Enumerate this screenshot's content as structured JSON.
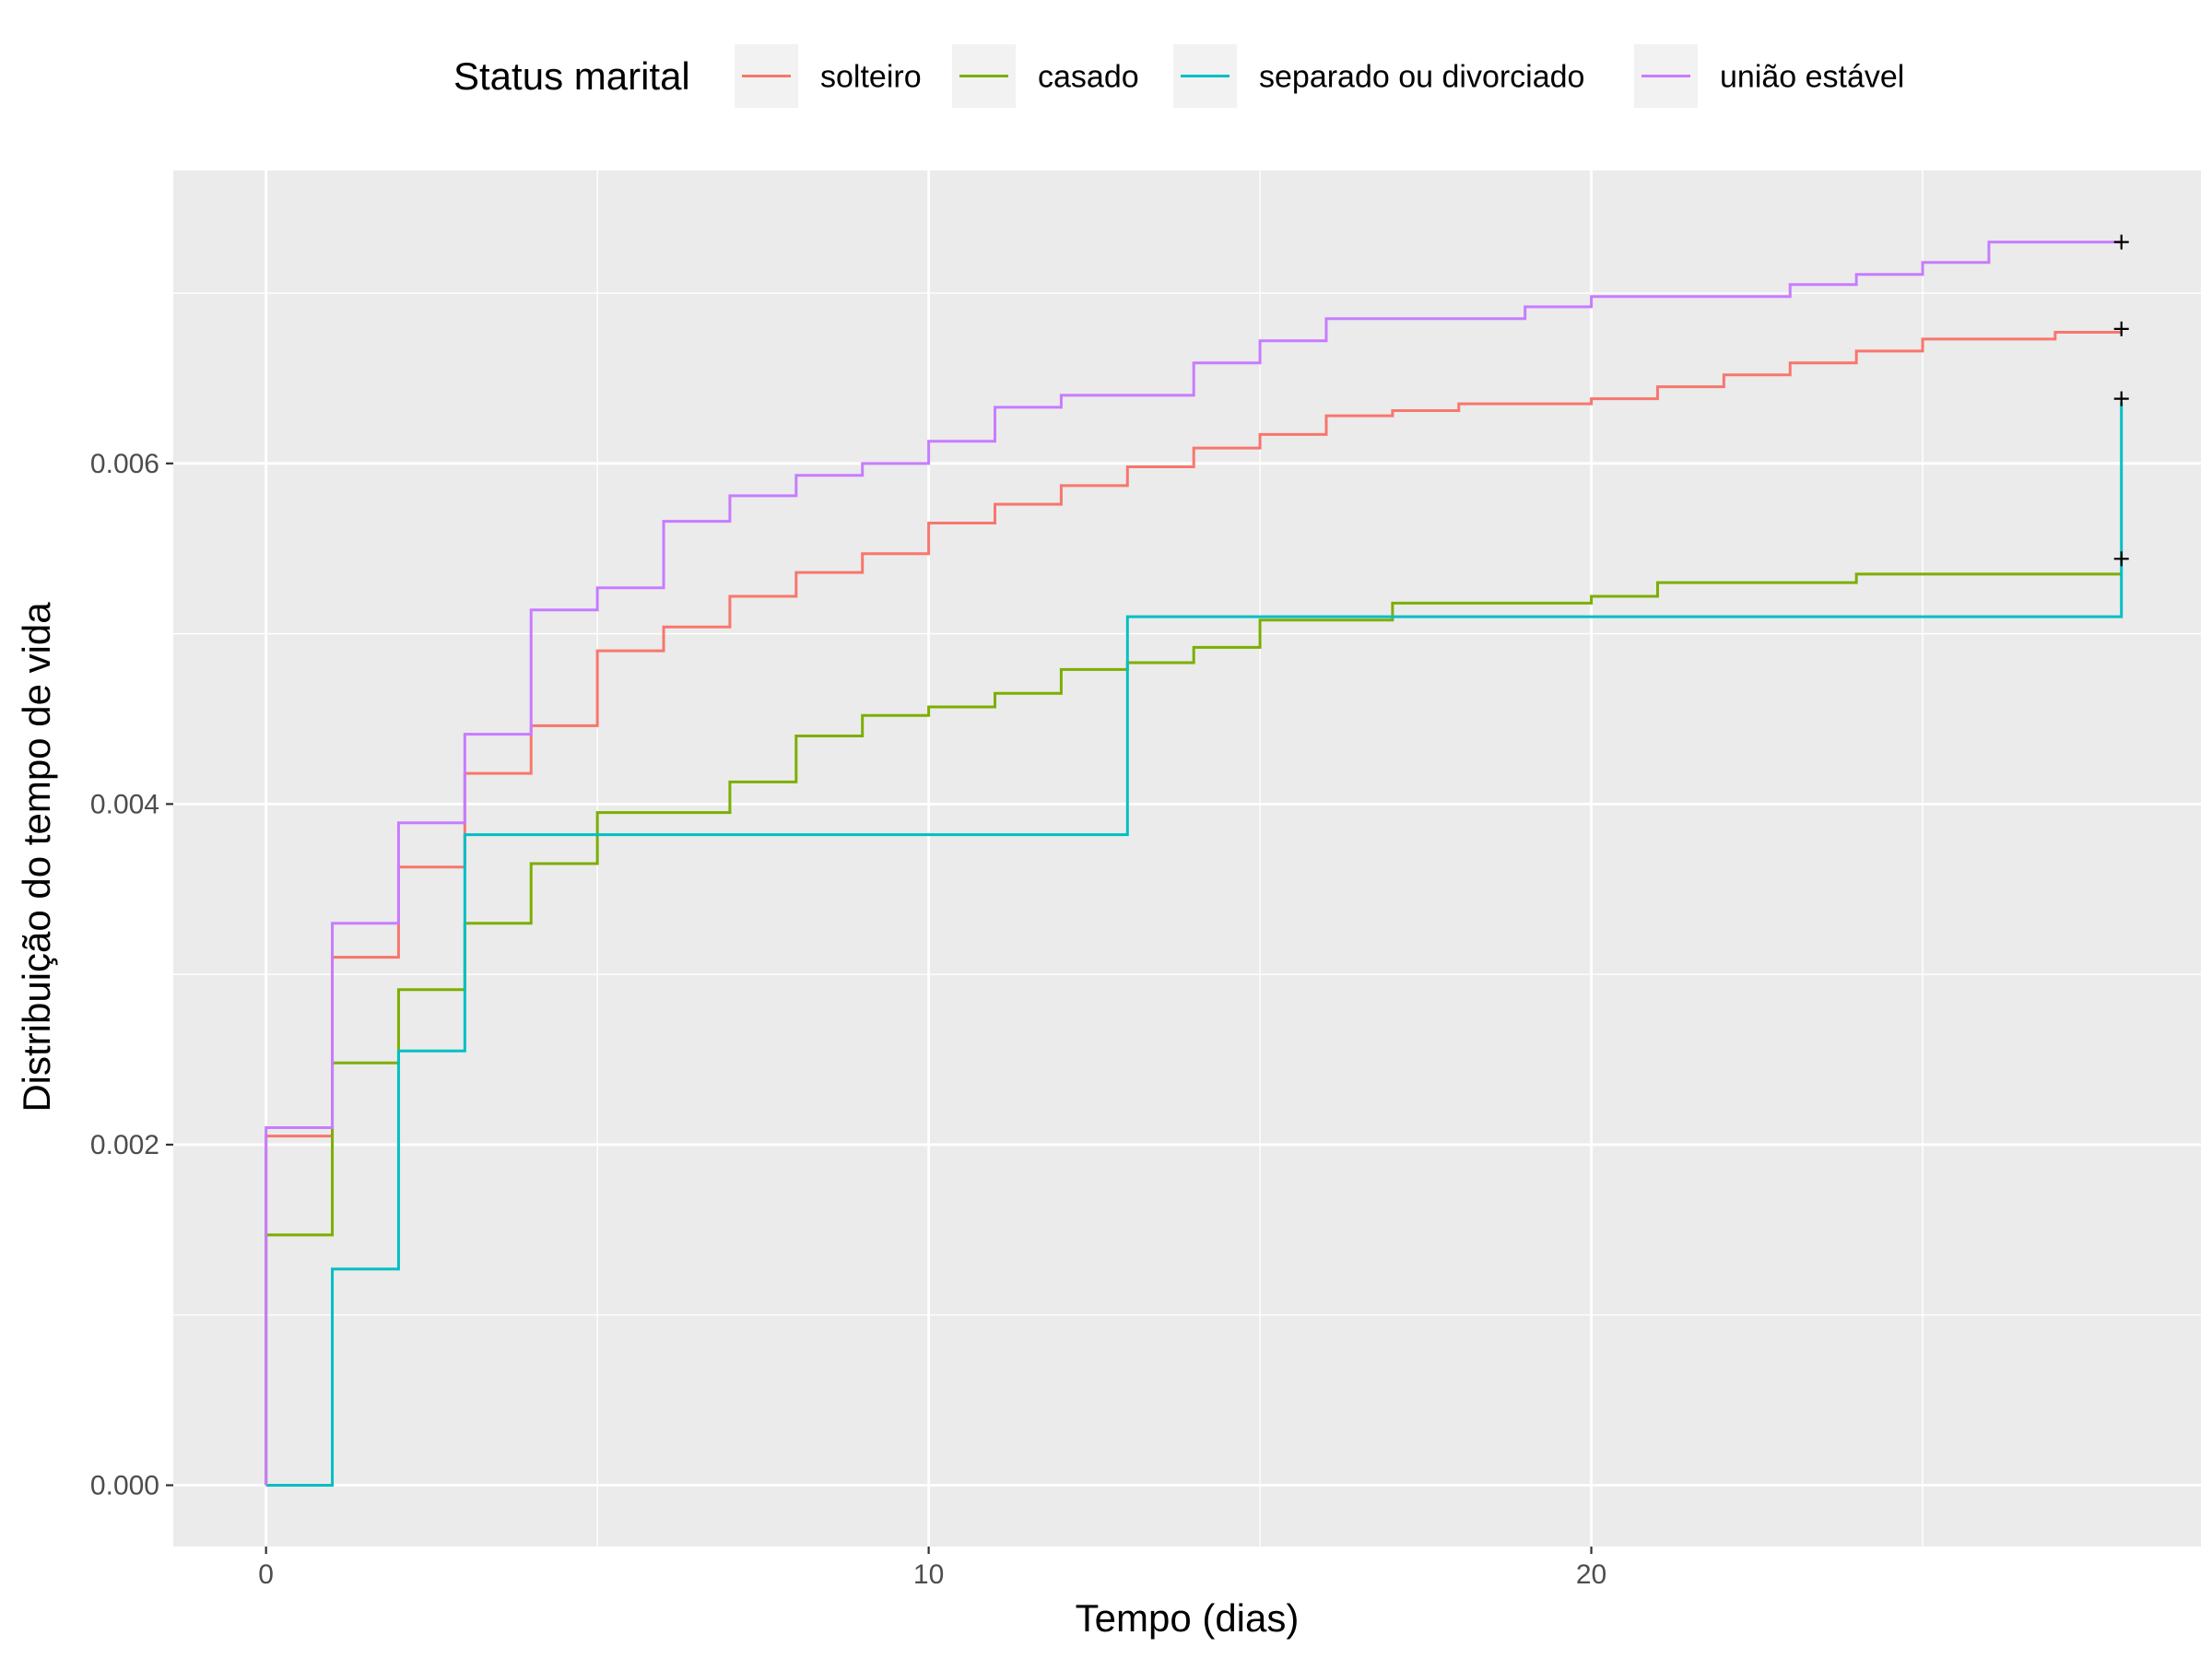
{
  "chart_data": {
    "type": "line",
    "subtype": "step",
    "title": "",
    "xlabel": "Tempo (dias)",
    "ylabel": "Distribuição do tempo de vida",
    "xlim": [
      -1.4,
      29.2
    ],
    "ylim": [
      -0.00036,
      0.00772
    ],
    "x_ticks": [
      0,
      10,
      20
    ],
    "x_tick_labels": [
      "0",
      "10",
      "20"
    ],
    "y_ticks": [
      0.0,
      0.002,
      0.004,
      0.006
    ],
    "y_tick_labels": [
      "0.000",
      "0.002",
      "0.004",
      "0.006"
    ],
    "grid": true,
    "legend": {
      "title": "Status marital",
      "position": "top"
    },
    "censor_mark": "+",
    "series": [
      {
        "name": "solteiro",
        "color": "#F8766D",
        "x": [
          0,
          0,
          1,
          2,
          3,
          4,
          5,
          6,
          7,
          8,
          9,
          10,
          11,
          12,
          13,
          14,
          15,
          16,
          17,
          18,
          20,
          21,
          22,
          23,
          24,
          25,
          27,
          28
        ],
        "y": [
          0,
          0.00205,
          0.0031,
          0.00363,
          0.00418,
          0.00446,
          0.0049,
          0.00504,
          0.00522,
          0.00536,
          0.00547,
          0.00565,
          0.00576,
          0.00587,
          0.00598,
          0.00609,
          0.00617,
          0.00628,
          0.00631,
          0.00635,
          0.00638,
          0.00645,
          0.00652,
          0.00659,
          0.00666,
          0.00673,
          0.00677,
          0.00677
        ],
        "censor_x": 28,
        "censor_y": 0.00679
      },
      {
        "name": "casado",
        "color": "#7CAE00",
        "x": [
          0,
          0,
          1,
          2,
          3,
          4,
          5,
          7,
          8,
          9,
          10,
          11,
          12,
          13,
          14,
          15,
          17,
          20,
          21,
          24,
          28
        ],
        "y": [
          0,
          0.00147,
          0.00248,
          0.00291,
          0.0033,
          0.00365,
          0.00395,
          0.00413,
          0.0044,
          0.00452,
          0.00457,
          0.00465,
          0.00479,
          0.00483,
          0.00492,
          0.00508,
          0.00518,
          0.00522,
          0.0053,
          0.00535,
          0.00535
        ],
        "censor_x": 28,
        "censor_y": 0.00544
      },
      {
        "name": "separado ou divorciado",
        "color": "#00BFC4",
        "x": [
          0,
          1,
          2,
          3,
          13,
          28,
          28
        ],
        "y": [
          0,
          0.00127,
          0.00255,
          0.00382,
          0.0051,
          0.0051,
          0.00636
        ],
        "censor_x": 28,
        "censor_y": 0.00638
      },
      {
        "name": "união estável",
        "color": "#C77CFF",
        "x": [
          0,
          0,
          1,
          2,
          3,
          4,
          5,
          6,
          7,
          8,
          9,
          10,
          11,
          12,
          14,
          15,
          16,
          19,
          20,
          23,
          24,
          25,
          26,
          28
        ],
        "y": [
          0,
          0.0021,
          0.0033,
          0.00389,
          0.00441,
          0.00514,
          0.00527,
          0.00566,
          0.00581,
          0.00593,
          0.006,
          0.00613,
          0.00633,
          0.0064,
          0.00659,
          0.00672,
          0.00685,
          0.00692,
          0.00698,
          0.00705,
          0.00711,
          0.00718,
          0.0073,
          0.0073
        ],
        "censor_x": 28,
        "censor_y": 0.0073
      }
    ]
  }
}
